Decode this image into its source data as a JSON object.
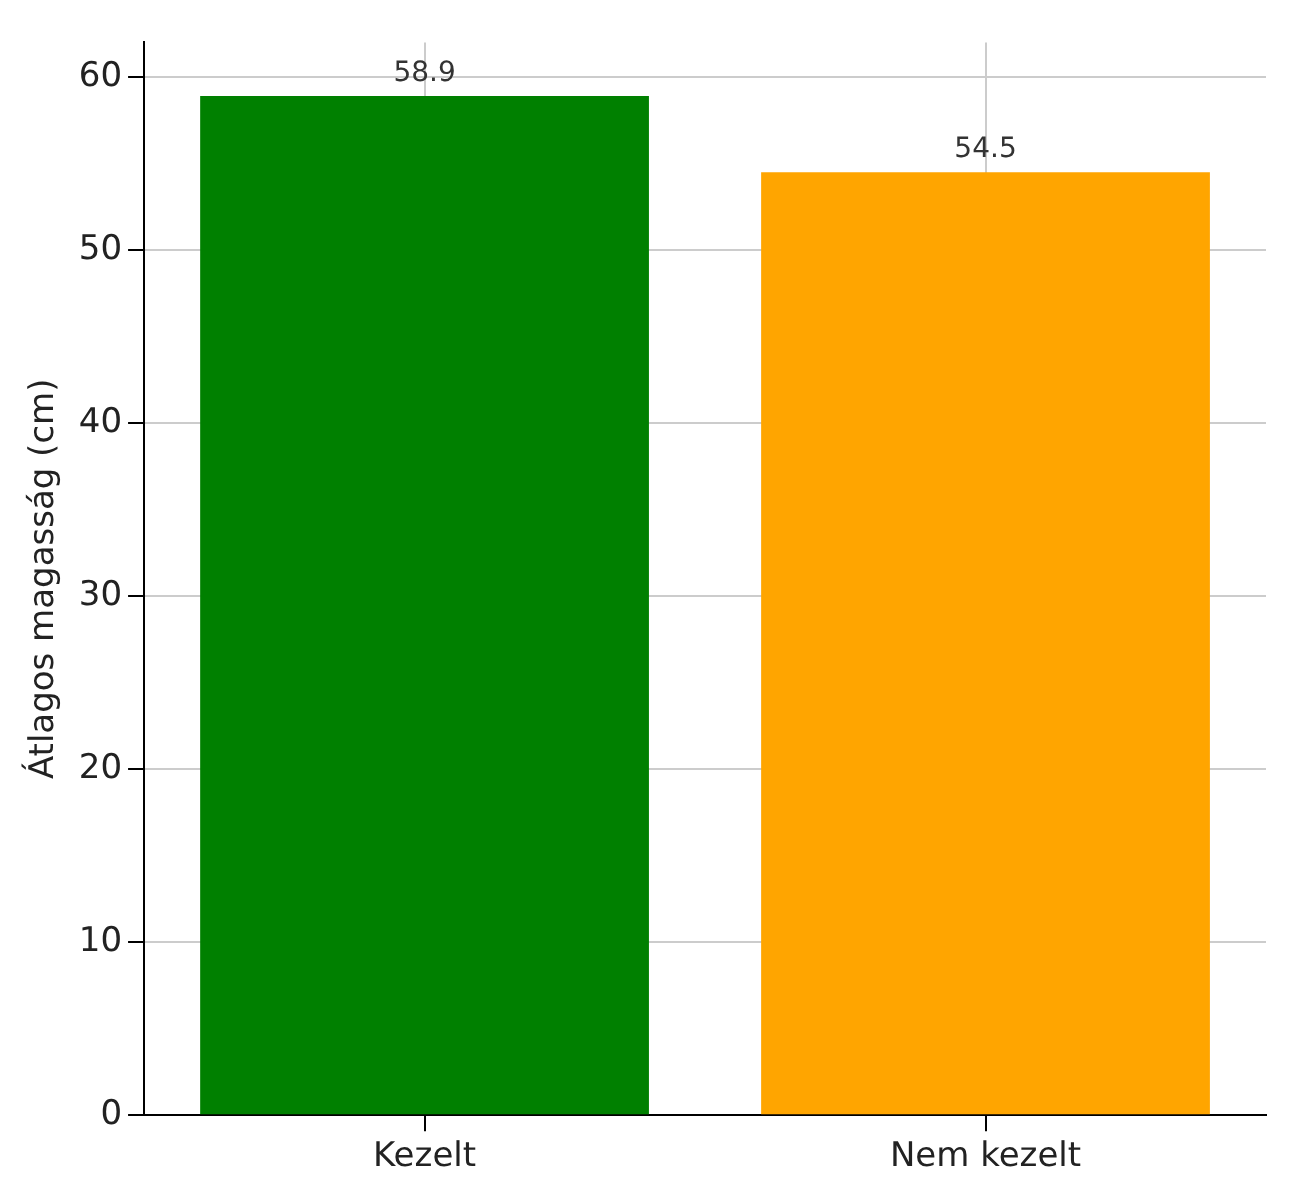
{
  "chart_data": {
    "type": "bar",
    "ylabel": "Átlagos magasság (cm)",
    "categories": [
      "Kezelt",
      "Nem kezelt"
    ],
    "values": [
      58.9,
      54.5
    ],
    "colors": [
      "#008000",
      "#ffa500"
    ],
    "ylim": [
      0,
      62
    ],
    "yticks": [
      0,
      10,
      20,
      30,
      40,
      50,
      60
    ],
    "grid": true,
    "data_labels": true
  }
}
